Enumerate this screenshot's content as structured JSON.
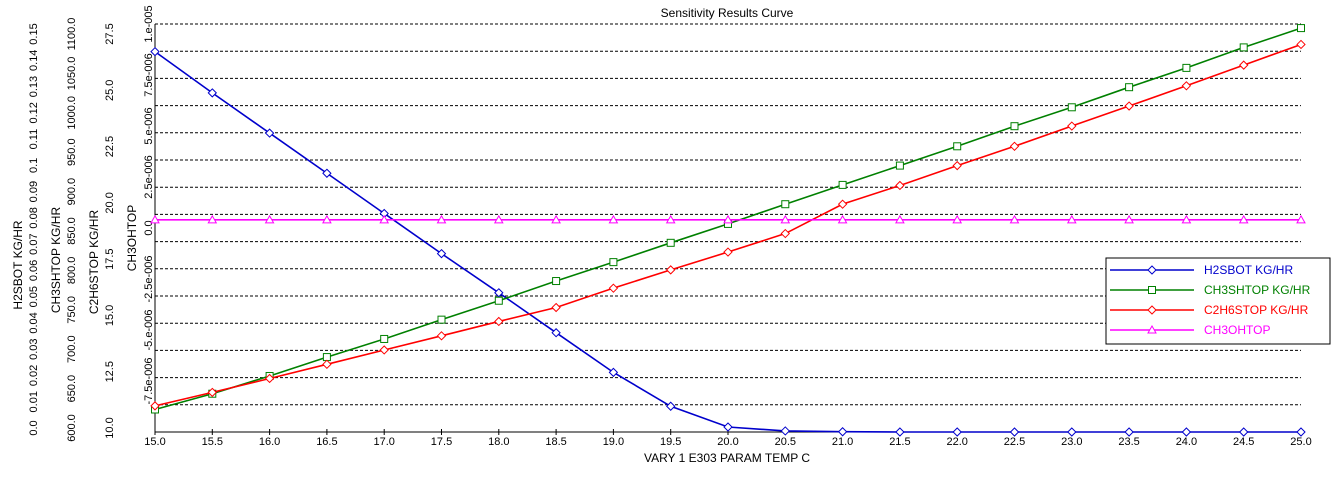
{
  "chart_data": {
    "type": "line",
    "title": "Sensitivity Results Curve",
    "xlabel": "VARY   1 E303 PARAM TEMP C",
    "xlim": [
      15.0,
      25.0
    ],
    "x_ticks": [
      "15.0",
      "15.5",
      "16.0",
      "16.5",
      "17.0",
      "17.5",
      "18.0",
      "18.5",
      "19.0",
      "19.5",
      "20.0",
      "20.5",
      "21.0",
      "21.5",
      "22.0",
      "22.5",
      "23.0",
      "23.5",
      "24.0",
      "24.5",
      "25.0"
    ],
    "x": [
      15.0,
      15.5,
      16.0,
      16.5,
      17.0,
      17.5,
      18.0,
      18.5,
      19.0,
      19.5,
      20.0,
      20.5,
      21.0,
      21.5,
      22.0,
      22.5,
      23.0,
      23.5,
      24.0,
      24.5,
      25.0
    ],
    "grid": "horizontal dashed",
    "legend_position": "right",
    "y_axes": [
      {
        "label": "H2SBOT KG/HR",
        "ylim": [
          0.0,
          0.05
        ],
        "ticks": [
          "0.0",
          "0.01",
          "0.02",
          "0.03",
          "0.04",
          "0.05",
          "0.06",
          "0.07",
          "0.08",
          "0.09",
          "0.1",
          "0.11",
          "0.12",
          "0.13",
          "0.14",
          "0.15"
        ]
      },
      {
        "label": "CH3SHTOP KG/HR",
        "ylim": [
          600.0,
          1100.0
        ],
        "ticks": [
          "600.0",
          "650.0",
          "700.0",
          "750.0",
          "800.0",
          "850.0",
          "900.0",
          "950.0",
          "1000.0",
          "1050.0",
          "1100.0"
        ]
      },
      {
        "label": "C2H6STOP KG/HR",
        "ylim": [
          10.0,
          28.75
        ],
        "ticks": [
          "10.0",
          "12.5",
          "15.0",
          "17.5",
          "20.0",
          "22.5",
          "25.0",
          "27.5"
        ]
      },
      {
        "label": "CH3OHTOP",
        "ylim": [
          -1e-05,
          1e-05
        ],
        "ticks": [
          "-7.5e-006",
          "-5.e-006",
          "-2.5e-006",
          "0.0",
          "2.5e-006",
          "5.e-006",
          "7.5e-006",
          "1.e-005"
        ]
      }
    ],
    "series": [
      {
        "name": "H2SBOT KG/HR",
        "axis": 0,
        "color": "#0000cc",
        "marker": "diamond",
        "values": [
          0.1448,
          0.1291,
          0.1138,
          0.0985,
          0.0832,
          0.0679,
          0.053,
          0.0378,
          0.0227,
          0.0098,
          0.0019,
          0.0004,
          0.0001,
          0.0,
          0.0,
          0.0,
          0.0,
          0.0,
          0.0,
          0.0,
          0.0
        ]
      },
      {
        "name": "CH3SHTOP KG/HR",
        "axis": 1,
        "color": "#008000",
        "marker": "square",
        "values": [
          623.5,
          643.5,
          666.0,
          690.0,
          713.0,
          737.5,
          761.5,
          786.5,
          810.5,
          835.0,
          859.0,
          884.0,
          908.5,
          933.0,
          957.5,
          983.0,
          1007.0,
          1032.5,
          1057.0,
          1083.0,
          1107.5
        ]
      },
      {
        "name": "C2H6STOP KG/HR",
        "axis": 2,
        "color": "#ff0000",
        "marker": "diamond",
        "values": [
          11.2,
          11.82,
          12.46,
          13.11,
          13.77,
          14.42,
          15.08,
          15.72,
          16.61,
          17.45,
          18.27,
          19.12,
          20.47,
          21.33,
          22.24,
          23.13,
          24.06,
          24.98,
          25.91,
          26.86,
          27.81
        ]
      },
      {
        "name": "CH3OHTOP",
        "axis": 3,
        "color": "#ff00ff",
        "marker": "triangle",
        "values": [
          4e-07,
          4e-07,
          4e-07,
          4e-07,
          4e-07,
          4e-07,
          4e-07,
          4e-07,
          4e-07,
          4e-07,
          4e-07,
          4e-07,
          4e-07,
          4e-07,
          4e-07,
          4e-07,
          4e-07,
          4e-07,
          4e-07,
          4e-07,
          4e-07
        ]
      }
    ]
  }
}
